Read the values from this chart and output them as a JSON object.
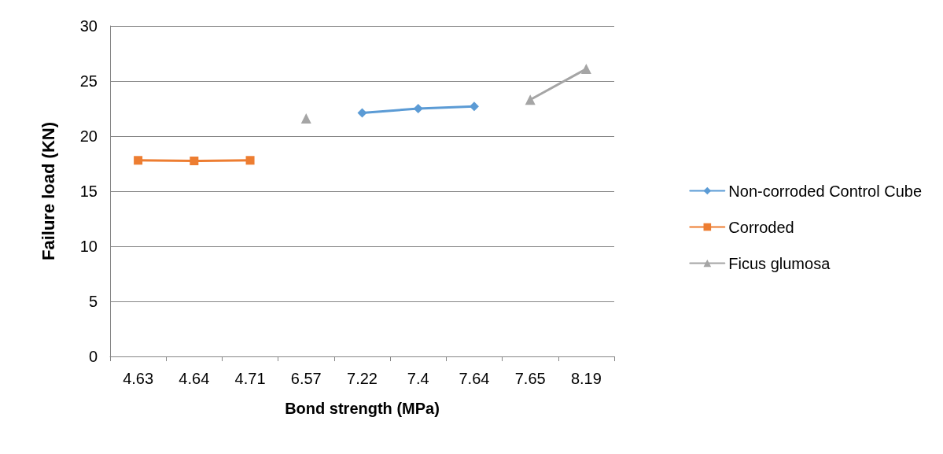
{
  "chart_data": {
    "type": "line",
    "xlabel": "Bond strength (MPa)",
    "ylabel": "Failure load (KN)",
    "categories": [
      "4.63",
      "4.64",
      "4.71",
      "6.57",
      "7.22",
      "7.4",
      "7.64",
      "7.65",
      "8.19"
    ],
    "series": [
      {
        "name": "Non-corroded Control Cube",
        "color": "#5b9bd5",
        "marker": "diamond",
        "values": [
          null,
          null,
          null,
          null,
          22.1,
          22.5,
          22.7,
          null,
          null
        ]
      },
      {
        "name": "Corroded",
        "color": "#ed7d31",
        "marker": "square",
        "values": [
          17.8,
          17.75,
          17.8,
          null,
          null,
          null,
          null,
          null,
          null
        ]
      },
      {
        "name": "Ficus glumosa",
        "color": "#a5a5a5",
        "marker": "triangle",
        "values": [
          null,
          null,
          null,
          21.6,
          null,
          null,
          null,
          23.3,
          26.1
        ]
      }
    ],
    "ylim": [
      0,
      30
    ],
    "yticks": [
      0,
      5,
      10,
      15,
      20,
      25,
      30
    ],
    "grid": "y",
    "legend": "right",
    "line_style": "solid"
  }
}
